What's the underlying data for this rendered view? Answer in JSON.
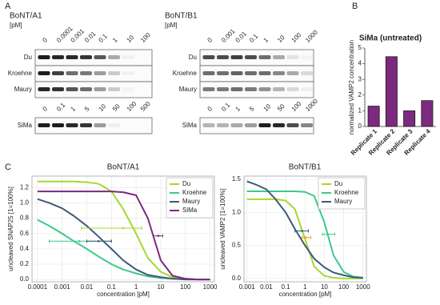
{
  "panel_labels": [
    "A",
    "B",
    "C"
  ],
  "blots": [
    {
      "title": "BoNT/A1",
      "unit": "[pM]",
      "groups": [
        {
          "concentrations": [
            "0",
            "0.0001",
            "0.001",
            "0.01",
            "0.1",
            "1",
            "10",
            "100"
          ],
          "rows": [
            "Du",
            "Kroehne",
            "Maury"
          ]
        },
        {
          "concentrations": [
            "0",
            "0.1",
            "1",
            "5",
            "10",
            "50",
            "100",
            "500"
          ],
          "rows": [
            "SiMa"
          ]
        }
      ]
    },
    {
      "title": "BoNT/B1",
      "unit": "[pM]",
      "groups": [
        {
          "concentrations": [
            "0",
            "0.001",
            "0.01",
            "0.1",
            "1",
            "10",
            "100",
            "1000"
          ],
          "rows": [
            "Du",
            "Kroehne",
            "Maury"
          ]
        },
        {
          "concentrations": [
            "0",
            "0.1",
            "1",
            "5",
            "10",
            "50",
            "100",
            "1000"
          ],
          "rows": [
            "SiMa"
          ]
        }
      ]
    }
  ],
  "chart_data": [
    {
      "type": "bar",
      "title": "SiMa (untreated)",
      "ylabel": "normalized VAMP2 concentration",
      "categories": [
        "Replicate 1",
        "Replicate 2",
        "Replicate 3",
        "Replicate 4"
      ],
      "values": [
        1.3,
        4.45,
        1.0,
        1.65
      ],
      "color": "#7b2a7e",
      "ylim": [
        0,
        5
      ],
      "yticks": [
        0,
        1,
        2,
        3,
        4,
        5
      ]
    },
    {
      "type": "line",
      "title": "BoNT/A1",
      "xlabel": "concentration [pM]",
      "ylabel": "uncleaved SNAP25 [1=100%]",
      "xscale": "log",
      "xlim": [
        6e-05,
        1500
      ],
      "ylim": [
        -0.03,
        1.35
      ],
      "grid": true,
      "legend": "upper right",
      "xticks": [
        0.0001,
        0.001,
        0.01,
        0.1,
        1,
        10,
        100,
        1000
      ],
      "yticks": [
        {
          "value": 0,
          "label": "0.0"
        },
        {
          "value": 0.2,
          "label": "0.2"
        },
        {
          "value": 0.4,
          "label": "0.4"
        },
        {
          "value": 0.6,
          "label": "0.6"
        },
        {
          "value": 0.8,
          "label": "0.8"
        },
        {
          "value": 1,
          "label": "1.0"
        },
        {
          "value": 1.2,
          "label": "1.2"
        }
      ],
      "x": [
        0.0001,
        0.0003,
        0.001,
        0.003,
        0.01,
        0.03,
        0.1,
        0.3,
        1,
        3,
        10,
        30,
        100,
        300,
        1000
      ],
      "series": [
        {
          "name": "Du",
          "color": "#a6d82f",
          "values": [
            1.28,
            1.28,
            1.28,
            1.28,
            1.27,
            1.25,
            1.15,
            0.92,
            0.6,
            0.28,
            0.1,
            0.03,
            0.01,
            0,
            0
          ]
        },
        {
          "name": "Kroehne",
          "color": "#3cc98a",
          "values": [
            0.78,
            0.7,
            0.6,
            0.5,
            0.4,
            0.3,
            0.2,
            0.13,
            0.08,
            0.04,
            0.02,
            0.01,
            0.005,
            0,
            0
          ]
        },
        {
          "name": "Maury",
          "color": "#3d5a78",
          "values": [
            1.05,
            1.0,
            0.93,
            0.83,
            0.7,
            0.56,
            0.4,
            0.25,
            0.13,
            0.06,
            0.03,
            0.01,
            0,
            0,
            0
          ]
        },
        {
          "name": "SiMa",
          "color": "#7b2a7e",
          "values": [
            1.15,
            1.15,
            1.15,
            1.15,
            1.15,
            1.15,
            1.15,
            1.14,
            1.1,
            0.8,
            0.25,
            0.05,
            0.01,
            0,
            0
          ]
        }
      ],
      "error_bars": [
        {
          "color": "#a6d82f",
          "x": 0.3,
          "y": 0.67,
          "xlow": 0.006,
          "xhigh": 1.7
        },
        {
          "color": "#3cc98a",
          "x": 0.005,
          "y": 0.5,
          "xlow": 0.0003,
          "xhigh": 0.1
        },
        {
          "color": "#3d5a78",
          "x": 0.03,
          "y": 0.5,
          "xlow": 0.01,
          "xhigh": 0.1
        },
        {
          "color": "#7b2a7e",
          "x": 8,
          "y": 0.57,
          "xlow": 5,
          "xhigh": 12
        }
      ]
    },
    {
      "type": "line",
      "title": "BoNT/B1",
      "xlabel": "concentration [pM]",
      "ylabel": "uncleaved VAMP2 [1=100%]",
      "xscale": "log",
      "xlim": [
        0.0007,
        1500
      ],
      "ylim": [
        -0.05,
        1.55
      ],
      "grid": true,
      "legend": "upper right",
      "xticks": [
        0.001,
        0.01,
        0.1,
        1,
        10,
        100,
        1000
      ],
      "yticks": [
        {
          "value": 0,
          "label": "0.0"
        },
        {
          "value": 0.5,
          "label": "0.5"
        },
        {
          "value": 1,
          "label": "1.0"
        },
        {
          "value": 1.5,
          "label": "1.5"
        }
      ],
      "x": [
        0.001,
        0.003,
        0.01,
        0.03,
        0.1,
        0.3,
        1,
        3,
        10,
        30,
        100,
        300,
        1000
      ],
      "series": [
        {
          "name": "Du",
          "color": "#a6d82f",
          "values": [
            1.2,
            1.2,
            1.2,
            1.2,
            1.18,
            1.05,
            0.6,
            0.18,
            0.04,
            0.01,
            0,
            0,
            0
          ]
        },
        {
          "name": "Kroehne",
          "color": "#3cc98a",
          "values": [
            1.32,
            1.32,
            1.32,
            1.32,
            1.32,
            1.32,
            1.31,
            1.25,
            0.85,
            0.35,
            0.1,
            0.03,
            0.01
          ]
        },
        {
          "name": "Maury",
          "color": "#3d5a78",
          "values": [
            1.47,
            1.42,
            1.35,
            1.2,
            1.0,
            0.75,
            0.5,
            0.3,
            0.17,
            0.09,
            0.05,
            0.02,
            0.01
          ]
        }
      ],
      "error_bars": [
        {
          "color": "#3d5a78",
          "x": 0.7,
          "y": 0.72,
          "xlow": 0.3,
          "xhigh": 1.5
        },
        {
          "color": "#f0a030",
          "x": 1.1,
          "y": 0.62,
          "xlow": 0.7,
          "xhigh": 2
        },
        {
          "color": "#3cc98a",
          "x": 15,
          "y": 0.67,
          "xlow": 8,
          "xhigh": 35
        }
      ]
    }
  ]
}
